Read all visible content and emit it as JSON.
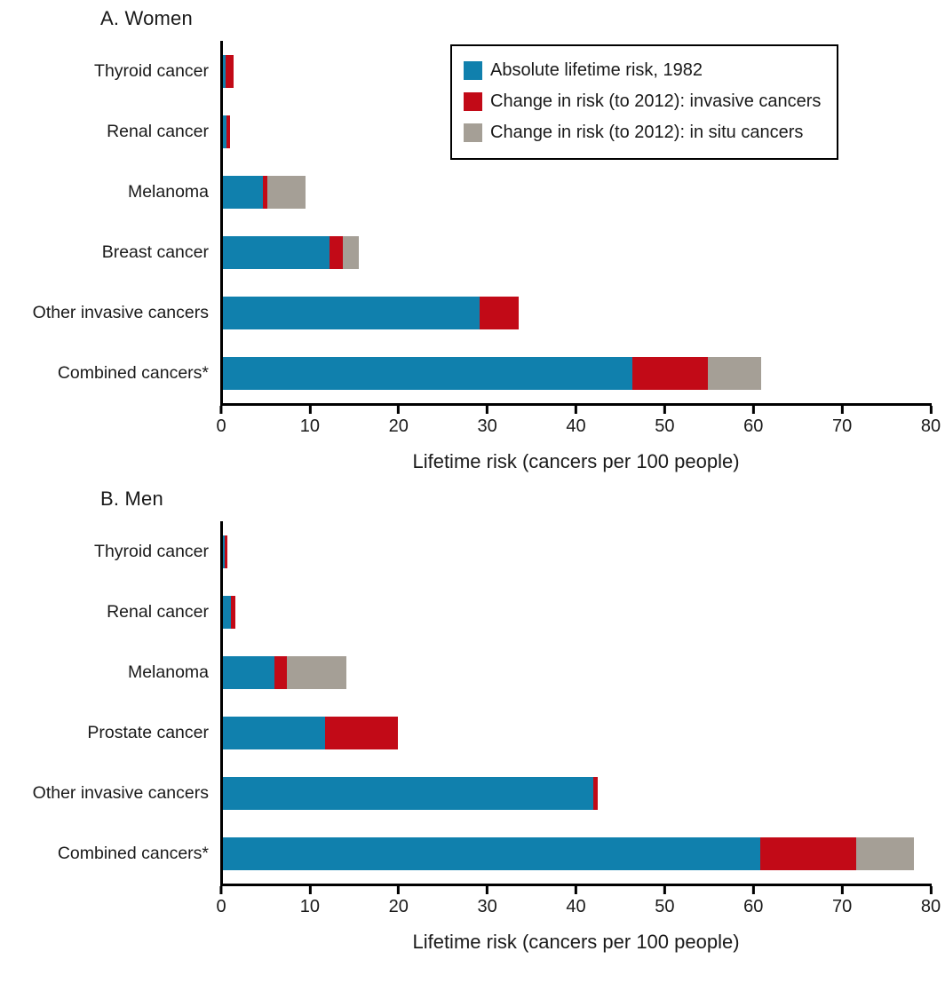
{
  "figure": {
    "x_axis_label": "Lifetime risk (cancers per 100 people)"
  },
  "legend": {
    "items": [
      {
        "key": "base",
        "label": "Absolute lifetime risk, 1982",
        "color": "#1080ad"
      },
      {
        "key": "invasive",
        "label": "Change in risk (to 2012): invasive cancers",
        "color": "#c20a17"
      },
      {
        "key": "insitu",
        "label": "Change in risk (to 2012): in situ cancers",
        "color": "#a59f96"
      }
    ]
  },
  "chart_data": [
    {
      "type": "bar",
      "orientation": "horizontal",
      "title": "A. Women",
      "categories": [
        "Thyroid cancer",
        "Renal cancer",
        "Melanoma",
        "Breast cancer",
        "Other invasive cancers",
        "Combined cancers*"
      ],
      "series": [
        {
          "name": "Absolute lifetime risk, 1982",
          "key": "base",
          "color": "#1080ad",
          "values": [
            0.3,
            0.4,
            4.5,
            12.0,
            29.0,
            46.2
          ]
        },
        {
          "name": "Change in risk (to 2012): invasive cancers",
          "key": "invasive",
          "color": "#c20a17",
          "values": [
            0.9,
            0.4,
            0.5,
            1.5,
            4.4,
            8.5
          ]
        },
        {
          "name": "Change in risk (to 2012): in situ cancers",
          "key": "insitu",
          "color": "#a59f96",
          "values": [
            0,
            0,
            4.3,
            1.8,
            0,
            6.1
          ]
        }
      ],
      "xlabel": "Lifetime risk (cancers per 100 people)",
      "xlim": [
        0,
        80
      ],
      "ticks": [
        0,
        10,
        20,
        30,
        40,
        50,
        60,
        70,
        80
      ],
      "grid": false,
      "legend_position": "top-right"
    },
    {
      "type": "bar",
      "orientation": "horizontal",
      "title": "B. Men",
      "categories": [
        "Thyroid cancer",
        "Renal cancer",
        "Melanoma",
        "Prostate cancer",
        "Other invasive cancers",
        "Combined cancers*"
      ],
      "series": [
        {
          "name": "Absolute lifetime risk, 1982",
          "key": "base",
          "color": "#1080ad",
          "values": [
            0.2,
            0.9,
            5.8,
            11.5,
            41.8,
            60.7
          ]
        },
        {
          "name": "Change in risk (to 2012): invasive cancers",
          "key": "invasive",
          "color": "#c20a17",
          "values": [
            0.3,
            0.5,
            1.4,
            8.3,
            0.5,
            10.8
          ]
        },
        {
          "name": "Change in risk (to 2012): in situ cancers",
          "key": "insitu",
          "color": "#a59f96",
          "values": [
            0,
            0,
            6.7,
            0,
            0,
            6.5
          ]
        }
      ],
      "xlabel": "Lifetime risk (cancers per 100 people)",
      "xlim": [
        0,
        80
      ],
      "ticks": [
        0,
        10,
        20,
        30,
        40,
        50,
        60,
        70,
        80
      ],
      "grid": false,
      "legend_position": "none"
    }
  ]
}
